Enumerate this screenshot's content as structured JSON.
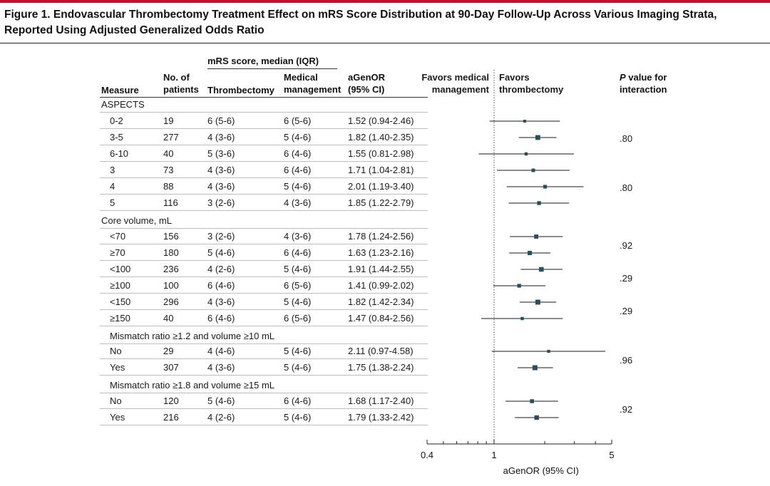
{
  "figure": {
    "title_line1": "Figure 1. Endovascular Thrombectomy Treatment Effect on mRS Score Distribution at 90-Day Follow-Up Across Various Imaging Strata,",
    "title_line2": "Reported Using Adjusted Generalized Odds Ratio",
    "accent_color": "#c8102e"
  },
  "headers": {
    "mrs_group": "mRS score, median (IQR)",
    "measure": "Measure",
    "patients_line1": "No. of",
    "patients_line2": "patients",
    "thrombectomy": "Thrombectomy",
    "medical_line1": "Medical",
    "medical_line2": "management",
    "agenor_line1": "aGenOR",
    "agenor_line2": "(95% CI)",
    "favors_medical_line1": "Favors medical",
    "favors_medical_line2": "management",
    "favors_thrombectomy_line1": "Favors",
    "favors_thrombectomy_line2": "thrombectomy",
    "pvalue_line1": "P value for",
    "pvalue_line2": "interaction"
  },
  "groups": [
    {
      "label": "ASPECTS"
    },
    {
      "label": "Core volume, mL"
    },
    {
      "label": "Mismatch ratio ≥1.2 and volume ≥10 mL"
    },
    {
      "label": "Mismatch ratio ≥1.8 and volume ≥15 mL"
    }
  ],
  "rows": [
    {
      "measure": "0-2",
      "n": "19",
      "thrombectomy": "6 (5-6)",
      "medical": "6 (5-6)",
      "agenor": "1.52 (0.94-2.46)"
    },
    {
      "measure": "3-5",
      "n": "277",
      "thrombectomy": "4 (3-6)",
      "medical": "5 (4-6)",
      "agenor": "1.82 (1.40-2.35)"
    },
    {
      "measure": "6-10",
      "n": "40",
      "thrombectomy": "5 (3-6)",
      "medical": "6 (4-6)",
      "agenor": "1.55 (0.81-2.98)"
    },
    {
      "measure": "3",
      "n": "73",
      "thrombectomy": "4 (3-6)",
      "medical": "6 (4-6)",
      "agenor": "1.71 (1.04-2.81)"
    },
    {
      "measure": "4",
      "n": "88",
      "thrombectomy": "4 (3-6)",
      "medical": "5 (4-6)",
      "agenor": "2.01 (1.19-3.40)"
    },
    {
      "measure": "5",
      "n": "116",
      "thrombectomy": "3 (2-6)",
      "medical": "4 (3-6)",
      "agenor": "1.85 (1.22-2.79)"
    },
    {
      "measure": "<70",
      "n": "156",
      "thrombectomy": "3 (2-6)",
      "medical": "4 (3-6)",
      "agenor": "1.78 (1.24-2.56)"
    },
    {
      "measure": "≥70",
      "n": "180",
      "thrombectomy": "5 (4-6)",
      "medical": "6 (4-6)",
      "agenor": "1.63 (1.23-2.16)"
    },
    {
      "measure": "<100",
      "n": "236",
      "thrombectomy": "4 (2-6)",
      "medical": "5 (4-6)",
      "agenor": "1.91 (1.44-2.55)"
    },
    {
      "measure": "≥100",
      "n": "100",
      "thrombectomy": "6 (4-6)",
      "medical": "6 (5-6)",
      "agenor": "1.41 (0.99-2.02)"
    },
    {
      "measure": "<150",
      "n": "296",
      "thrombectomy": "4 (3-6)",
      "medical": "5 (4-6)",
      "agenor": "1.82 (1.42-2.34)"
    },
    {
      "measure": "≥150",
      "n": "40",
      "thrombectomy": "6 (4-6)",
      "medical": "6 (5-6)",
      "agenor": "1.47 (0.84-2.56)"
    },
    {
      "measure": "No",
      "n": "29",
      "thrombectomy": "4 (4-6)",
      "medical": "5 (4-6)",
      "agenor": "2.11 (0.97-4.58)"
    },
    {
      "measure": "Yes",
      "n": "307",
      "thrombectomy": "4 (3-6)",
      "medical": "5 (4-6)",
      "agenor": "1.75 (1.38-2.24)"
    },
    {
      "measure": "No",
      "n": "120",
      "thrombectomy": "5 (4-6)",
      "medical": "6 (4-6)",
      "agenor": "1.68 (1.17-2.40)"
    },
    {
      "measure": "Yes",
      "n": "216",
      "thrombectomy": "4 (2-6)",
      "medical": "5 (4-6)",
      "agenor": "1.79 (1.33-2.42)"
    }
  ],
  "pvalues": [
    ".80",
    ".80",
    ".92",
    ".29",
    ".29",
    ".96",
    ".92"
  ],
  "chart_data": {
    "type": "forest",
    "xlabel": "aGenOR (95% CI)",
    "xscale": "log",
    "xlim": [
      0.4,
      5
    ],
    "x_tick_labels": [
      "0.4",
      "1",
      "5"
    ],
    "reference_line": 1,
    "colors": {
      "marker": "#2b4d5c",
      "line": "#1a1a1a",
      "reference": "#555555"
    },
    "series": [
      {
        "estimate": 1.52,
        "lower": 0.94,
        "upper": 2.46,
        "n": 19
      },
      {
        "estimate": 1.82,
        "lower": 1.4,
        "upper": 2.35,
        "n": 277
      },
      {
        "estimate": 1.55,
        "lower": 0.81,
        "upper": 2.98,
        "n": 40
      },
      {
        "estimate": 1.71,
        "lower": 1.04,
        "upper": 2.81,
        "n": 73
      },
      {
        "estimate": 2.01,
        "lower": 1.19,
        "upper": 3.4,
        "n": 88
      },
      {
        "estimate": 1.85,
        "lower": 1.22,
        "upper": 2.79,
        "n": 116
      },
      {
        "estimate": 1.78,
        "lower": 1.24,
        "upper": 2.56,
        "n": 156
      },
      {
        "estimate": 1.63,
        "lower": 1.23,
        "upper": 2.16,
        "n": 180
      },
      {
        "estimate": 1.91,
        "lower": 1.44,
        "upper": 2.55,
        "n": 236
      },
      {
        "estimate": 1.41,
        "lower": 0.99,
        "upper": 2.02,
        "n": 100
      },
      {
        "estimate": 1.82,
        "lower": 1.42,
        "upper": 2.34,
        "n": 296
      },
      {
        "estimate": 1.47,
        "lower": 0.84,
        "upper": 2.56,
        "n": 40
      },
      {
        "estimate": 2.11,
        "lower": 0.97,
        "upper": 4.58,
        "n": 29
      },
      {
        "estimate": 1.75,
        "lower": 1.38,
        "upper": 2.24,
        "n": 307
      },
      {
        "estimate": 1.68,
        "lower": 1.17,
        "upper": 2.4,
        "n": 120
      },
      {
        "estimate": 1.79,
        "lower": 1.33,
        "upper": 2.42,
        "n": 216
      }
    ]
  }
}
